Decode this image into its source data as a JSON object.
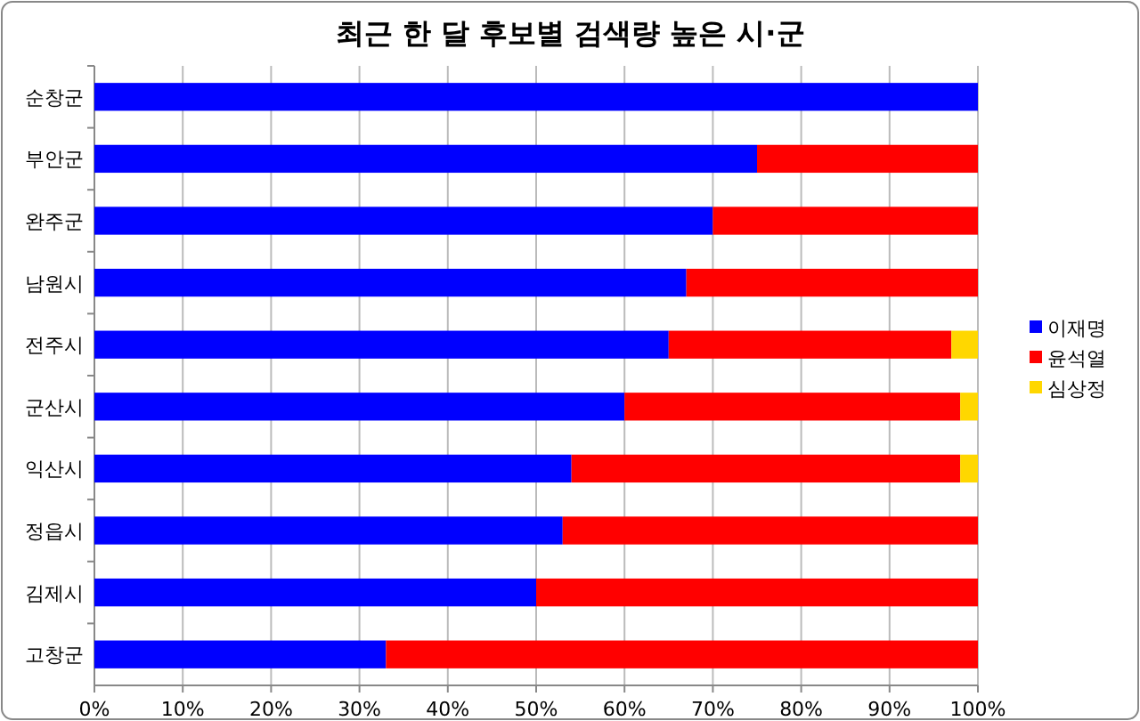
{
  "chart_data": {
    "type": "bar",
    "title": "최근 한 달 후보별 검색량 높은 시·군",
    "orientation": "horizontal",
    "stacked": true,
    "categories": [
      "순창군",
      "부안군",
      "완주군",
      "남원시",
      "전주시",
      "군산시",
      "익산시",
      "정읍시",
      "김제시",
      "고창군"
    ],
    "series": [
      {
        "name": "이재명",
        "color": "#0000ff",
        "values": [
          100,
          75,
          70,
          67,
          65,
          60,
          54,
          53,
          50,
          33
        ]
      },
      {
        "name": "윤석열",
        "color": "#ff0000",
        "values": [
          0,
          25,
          30,
          33,
          32,
          38,
          44,
          47,
          50,
          67
        ]
      },
      {
        "name": "심상정",
        "color": "#ffd700",
        "values": [
          0,
          0,
          0,
          0,
          3,
          2,
          2,
          0,
          0,
          0
        ]
      }
    ],
    "xlim": [
      0,
      100
    ],
    "xticks": [
      {
        "value": 0,
        "label": "0%"
      },
      {
        "value": 10,
        "label": "10%"
      },
      {
        "value": 20,
        "label": "20%"
      },
      {
        "value": 30,
        "label": "30%"
      },
      {
        "value": 40,
        "label": "40%"
      },
      {
        "value": 50,
        "label": "50%"
      },
      {
        "value": 60,
        "label": "60%"
      },
      {
        "value": 70,
        "label": "70%"
      },
      {
        "value": 80,
        "label": "80%"
      },
      {
        "value": 90,
        "label": "90%"
      },
      {
        "value": 100,
        "label": "100%"
      }
    ],
    "grid": "x",
    "legend": "right"
  }
}
